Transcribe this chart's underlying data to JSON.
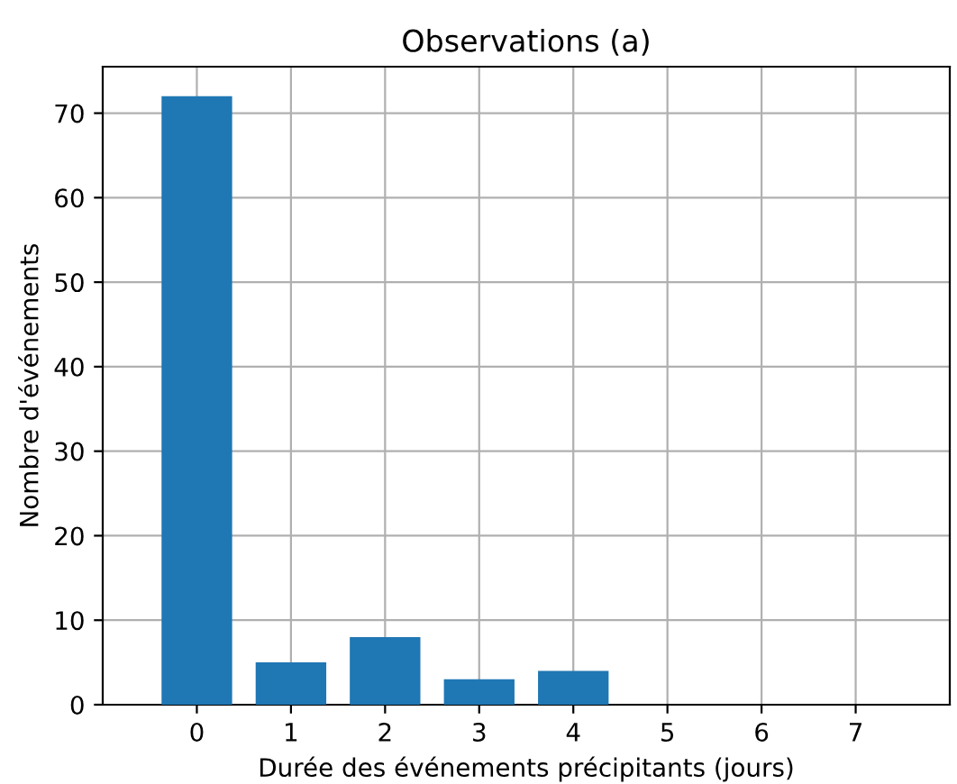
{
  "chart_data": {
    "type": "bar",
    "title": "Observations (a)",
    "xlabel": "Durée des événements précipitants (jours)",
    "ylabel": "Nombre d'événements",
    "x": [
      0,
      1,
      2,
      3,
      4,
      5,
      6,
      7
    ],
    "values": [
      72,
      5,
      8,
      3,
      4,
      0,
      0,
      0
    ],
    "color": "#1f77b4",
    "xlim": [
      -1,
      8
    ],
    "xticks": [
      0,
      1,
      2,
      3,
      4,
      5,
      6,
      7
    ],
    "ylim": [
      0,
      75.5
    ],
    "yticks": [
      0,
      10,
      20,
      30,
      40,
      50,
      60,
      70
    ],
    "grid": true
  }
}
